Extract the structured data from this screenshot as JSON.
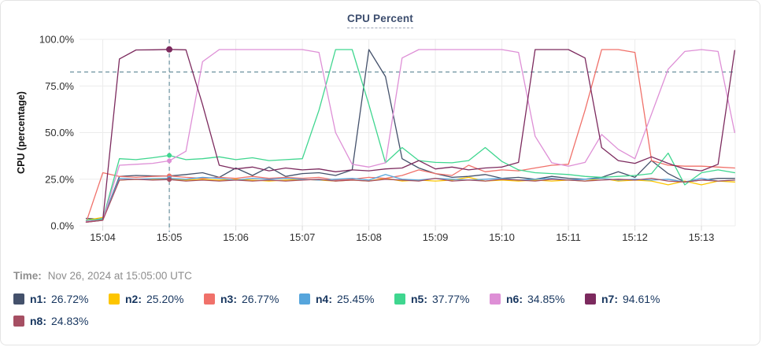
{
  "header": {
    "title": "CPU Percent"
  },
  "time_row": {
    "label": "Time:",
    "value": "Nov 26, 2024 at 15:05:00 UTC"
  },
  "legend": {
    "items": [
      {
        "name": "n1",
        "label": "n1:",
        "value": "26.72%",
        "color": "#44516b"
      },
      {
        "name": "n2",
        "label": "n2:",
        "value": "25.20%",
        "color": "#fdc500"
      },
      {
        "name": "n3",
        "label": "n3:",
        "value": "26.77%",
        "color": "#f0716a"
      },
      {
        "name": "n4",
        "label": "n4:",
        "value": "25.45%",
        "color": "#56a5dc"
      },
      {
        "name": "n5",
        "label": "n5:",
        "value": "37.77%",
        "color": "#3fd68f"
      },
      {
        "name": "n6",
        "label": "n6:",
        "value": "34.85%",
        "color": "#de8fd6"
      },
      {
        "name": "n7",
        "label": "n7:",
        "value": "94.61%",
        "color": "#7c2a5e"
      },
      {
        "name": "n8",
        "label": "n8:",
        "value": "24.83%",
        "color": "#a64f63"
      }
    ]
  },
  "chart_data": {
    "type": "line",
    "title": "CPU Percent",
    "ylabel": "CPU (percentage)",
    "xlabel": "",
    "ylim": [
      0,
      100
    ],
    "grid": true,
    "legend_position": "bottom",
    "threshold_percent": 82.5,
    "crosshair": {
      "x_minutes": 5.0,
      "time_label": "15:05:00"
    },
    "yticks": [
      {
        "v": 0,
        "label": "0.0%"
      },
      {
        "v": 25,
        "label": "25.0%"
      },
      {
        "v": 50,
        "label": "50.0%"
      },
      {
        "v": 75,
        "label": "75.0%"
      },
      {
        "v": 100,
        "label": "100.0%"
      }
    ],
    "xticks": [
      {
        "v": 4,
        "label": "15:04"
      },
      {
        "v": 5,
        "label": "15:05"
      },
      {
        "v": 6,
        "label": "15:06"
      },
      {
        "v": 7,
        "label": "15:07"
      },
      {
        "v": 8,
        "label": "15:08"
      },
      {
        "v": 9,
        "label": "15:09"
      },
      {
        "v": 10,
        "label": "15:10"
      },
      {
        "v": 11,
        "label": "15:11"
      },
      {
        "v": 12,
        "label": "15:12"
      },
      {
        "v": 13,
        "label": "15:13"
      }
    ],
    "x_minutes": [
      3.75,
      4.0,
      4.25,
      4.5,
      4.75,
      5.0,
      5.25,
      5.5,
      5.75,
      6.0,
      6.25,
      6.5,
      6.75,
      7.0,
      7.25,
      7.5,
      7.75,
      8.0,
      8.25,
      8.5,
      8.75,
      9.0,
      9.25,
      9.5,
      9.75,
      10.0,
      10.25,
      10.5,
      10.75,
      11.0,
      11.25,
      11.5,
      11.75,
      12.0,
      12.25,
      12.5,
      12.75,
      13.0,
      13.25,
      13.5
    ],
    "series": [
      {
        "name": "n1",
        "color": "#44516b",
        "values": [
          4,
          3.5,
          26.5,
          27,
          26.8,
          26.72,
          27.5,
          28.5,
          26,
          31,
          27,
          31.5,
          26.5,
          28,
          28.5,
          27,
          30,
          94.5,
          80,
          36,
          31,
          28,
          26,
          26.5,
          27.5,
          25.5,
          26,
          25,
          26.5,
          25.5,
          25,
          26,
          29,
          26,
          35,
          28,
          23.5,
          24.5,
          25.5,
          25.5
        ]
      },
      {
        "name": "n2",
        "color": "#fdc500",
        "values": [
          3,
          4.5,
          24.5,
          25,
          24.8,
          25.2,
          24.5,
          25,
          24.5,
          25,
          24.5,
          24,
          24.5,
          25,
          24.5,
          24,
          24.5,
          24,
          25.5,
          24,
          24.5,
          24,
          24.5,
          26,
          24,
          24.5,
          24,
          24.5,
          24,
          24.5,
          24,
          25.5,
          24,
          24.5,
          24,
          22,
          24,
          22,
          24,
          23.5
        ]
      },
      {
        "name": "n3",
        "color": "#f0716a",
        "values": [
          2,
          28.5,
          26.5,
          26,
          26.5,
          26.77,
          26,
          25.5,
          26,
          25.5,
          26.5,
          25.5,
          26,
          25.5,
          26,
          24.5,
          25,
          26,
          25.5,
          27,
          30,
          28,
          27,
          32.5,
          29,
          30,
          29.5,
          31,
          32.5,
          33,
          62,
          94.5,
          94.5,
          93,
          35,
          32.5,
          32,
          32,
          31.5,
          31
        ]
      },
      {
        "name": "n4",
        "color": "#56a5dc",
        "values": [
          2,
          4,
          25.5,
          25,
          25.3,
          25.45,
          25,
          26,
          25.5,
          24.5,
          25.5,
          25,
          25.5,
          25,
          24.5,
          25,
          25.5,
          24.5,
          27.5,
          25,
          24.5,
          25.5,
          25,
          24.5,
          25,
          25.5,
          24.5,
          25,
          25.5,
          24.5,
          25,
          25.5,
          24.5,
          25,
          24.5,
          25,
          23.5,
          25.5,
          24,
          24.5
        ]
      },
      {
        "name": "n5",
        "color": "#3fd68f",
        "values": [
          3,
          3.5,
          36,
          35.5,
          36.5,
          37.77,
          35.5,
          36,
          37,
          35.5,
          36.5,
          35,
          35.5,
          36,
          62,
          94.5,
          94.5,
          65,
          33.8,
          42,
          35,
          34,
          33.8,
          35,
          42,
          34.5,
          30,
          28.5,
          28,
          27.5,
          26.5,
          26,
          26.5,
          27,
          28,
          39,
          22,
          28.5,
          30,
          28.5
        ]
      },
      {
        "name": "n6",
        "color": "#de8fd6",
        "values": [
          2.5,
          3,
          32.5,
          33,
          33.5,
          34.85,
          40,
          88,
          94.5,
          94.5,
          94.5,
          94.5,
          94.5,
          94.5,
          93,
          50,
          33,
          31.5,
          33.8,
          90,
          94.5,
          94.5,
          94.5,
          94.5,
          94.5,
          94.5,
          93,
          48,
          33.8,
          32,
          34,
          49,
          41,
          36,
          60,
          84,
          93.5,
          94.5,
          93.5,
          50
        ]
      },
      {
        "name": "n7",
        "color": "#7c2a5e",
        "values": [
          2,
          3,
          89.5,
          94.3,
          94.4,
          94.61,
          94.4,
          65,
          32.5,
          30.5,
          31.5,
          29.5,
          31,
          30,
          30.5,
          29,
          30,
          29.5,
          30.5,
          31,
          35,
          30.5,
          31.5,
          30,
          31,
          31.5,
          34,
          94.5,
          94.5,
          94.5,
          90,
          42,
          35,
          33.5,
          37,
          33.5,
          30.5,
          29.5,
          33,
          94
        ]
      },
      {
        "name": "n8",
        "color": "#a64f63",
        "values": [
          2,
          3,
          24.5,
          25,
          24.5,
          24.83,
          24,
          24.5,
          24,
          24.5,
          24,
          24.5,
          24,
          24.5,
          25,
          24,
          24.5,
          24,
          25,
          24.5,
          24,
          25.5,
          24,
          24.5,
          24,
          25,
          24.5,
          24,
          25,
          24.5,
          24,
          24.5,
          25,
          24.5,
          25.5,
          24,
          23.5,
          24.5,
          24,
          24.5
        ]
      }
    ],
    "style": {
      "crosshair_color": "#4e7d8d",
      "grid_color": "#ececec",
      "tick_color": "#d8d8d8",
      "tick_text_color": "#2e2e2e"
    }
  }
}
